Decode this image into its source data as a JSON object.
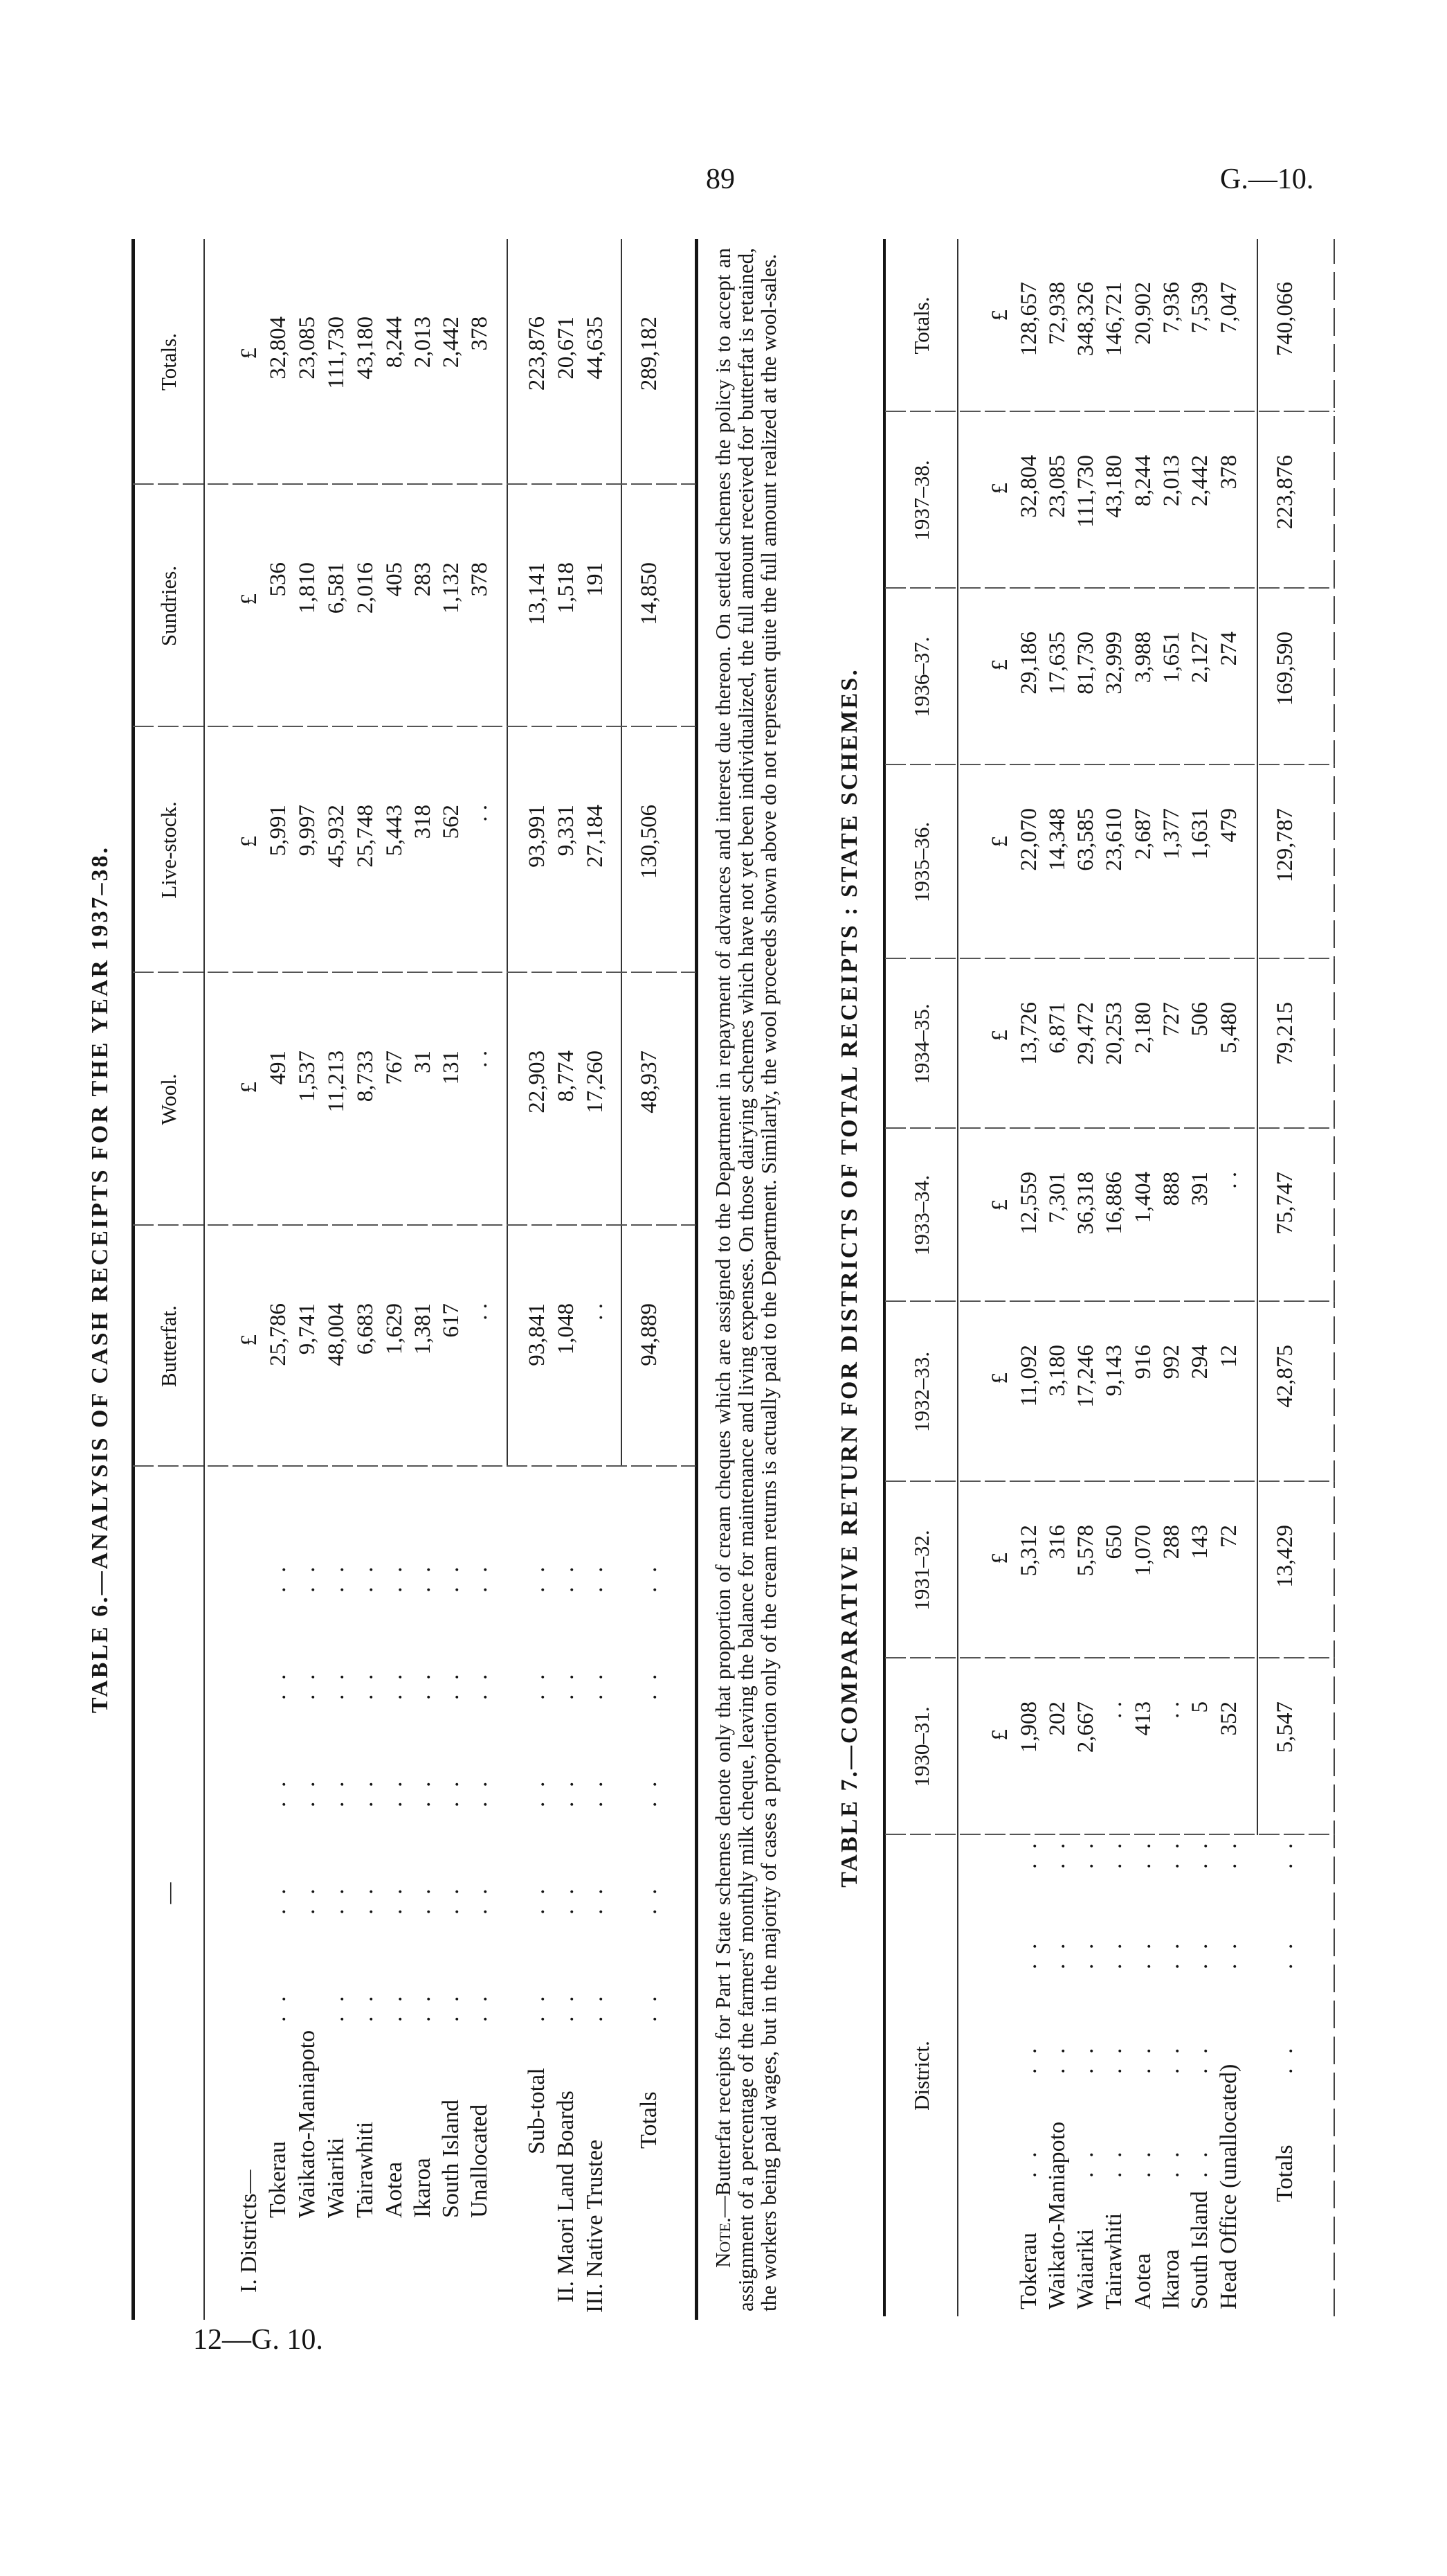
{
  "page": {
    "header_page_number": "89",
    "header_reference": "G.—10.",
    "footer_reference": "12—G. 10."
  },
  "table6": {
    "title": "TABLE 6.—ANALYSIS OF CASH RECEIPTS FOR THE YEAR 1937–38.",
    "columns": [
      "—",
      "Butterfat.",
      "Wool.",
      "Live-stock.",
      "Sundries.",
      "Totals."
    ],
    "currency": "£",
    "rows": [
      {
        "label": "I. Districts—",
        "values": []
      },
      {
        "label": "Tokerau",
        "values": [
          "25,786",
          "491",
          "5,991",
          "536",
          "32,804"
        ]
      },
      {
        "label": "Waikato-Maniapoto",
        "values": [
          "9,741",
          "1,537",
          "9,997",
          "1,810",
          "23,085"
        ]
      },
      {
        "label": "Waiariki",
        "values": [
          "48,004",
          "11,213",
          "45,932",
          "6,581",
          "111,730"
        ]
      },
      {
        "label": "Tairawhiti",
        "values": [
          "6,683",
          "8,733",
          "25,748",
          "2,016",
          "43,180"
        ]
      },
      {
        "label": "Aotea",
        "values": [
          "1,629",
          "767",
          "5,443",
          "405",
          "8,244"
        ]
      },
      {
        "label": "Ikaroa",
        "values": [
          "1,381",
          "31",
          "318",
          "283",
          "2,013"
        ]
      },
      {
        "label": "South Island",
        "values": [
          "617",
          "131",
          "562",
          "1,132",
          "2,442"
        ]
      },
      {
        "label": "Unallocated",
        "values": [
          ". .",
          ". .",
          ". .",
          "378",
          "378"
        ]
      },
      {
        "label": "Sub-total",
        "values": [
          "93,841",
          "22,903",
          "93,991",
          "13,141",
          "223,876"
        ]
      },
      {
        "label": "II. Maori Land Boards",
        "values": [
          "1,048",
          "8,774",
          "9,331",
          "1,518",
          "20,671"
        ]
      },
      {
        "label": "III. Native Trustee",
        "values": [
          ". .",
          "17,260",
          "27,184",
          "191",
          "44,635"
        ]
      },
      {
        "label": "Totals",
        "values": [
          "94,889",
          "48,937",
          "130,506",
          "14,850",
          "289,182"
        ]
      }
    ]
  },
  "note": {
    "lead": "Note.",
    "text": "—Butterfat receipts for Part I State schemes denote only that proportion of cream cheques which are assigned to the Department in repayment of advances and interest due thereon. On settled schemes the policy is to accept an assignment of a percentage of the farmers' monthly milk cheque, leaving the balance for maintenance and living expenses. On those dairying schemes which have not yet been individualized, the full amount received for butterfat is retained, the workers being paid wages, but in the majority of cases a proportion only of the cream returns is actually paid to the Department. Similarly, the wool proceeds shown above do not represent quite the full amount realized at the wool-sales."
  },
  "table7": {
    "title": "TABLE 7.—COMPARATIVE RETURN FOR DISTRICTS OF TOTAL RECEIPTS : STATE SCHEMES.",
    "columns": [
      "District.",
      "1930–31.",
      "1931–32.",
      "1932–33.",
      "1933–34.",
      "1934–35.",
      "1935–36.",
      "1936–37.",
      "1937–38.",
      "Totals."
    ],
    "currency": "£",
    "rows": [
      {
        "label": "Tokerau",
        "values": [
          "1,908",
          "5,312",
          "11,092",
          "12,559",
          "13,726",
          "22,070",
          "29,186",
          "32,804",
          "128,657"
        ]
      },
      {
        "label": "Waikato-Maniapoto",
        "values": [
          "202",
          "316",
          "3,180",
          "7,301",
          "6,871",
          "14,348",
          "17,635",
          "23,085",
          "72,938"
        ]
      },
      {
        "label": "Waiariki",
        "values": [
          "2,667",
          "5,578",
          "17,246",
          "36,318",
          "29,472",
          "63,585",
          "81,730",
          "111,730",
          "348,326"
        ]
      },
      {
        "label": "Tairawhiti",
        "values": [
          ". .",
          "650",
          "9,143",
          "16,886",
          "20,253",
          "23,610",
          "32,999",
          "43,180",
          "146,721"
        ]
      },
      {
        "label": "Aotea",
        "values": [
          "413",
          "1,070",
          "916",
          "1,404",
          "2,180",
          "2,687",
          "3,988",
          "8,244",
          "20,902"
        ]
      },
      {
        "label": "Ikaroa",
        "values": [
          ". .",
          "288",
          "992",
          "888",
          "727",
          "1,377",
          "1,651",
          "2,013",
          "7,936"
        ]
      },
      {
        "label": "South Island",
        "values": [
          "5",
          "143",
          "294",
          "391",
          "506",
          "1,631",
          "2,127",
          "2,442",
          "7,539"
        ]
      },
      {
        "label": "Head Office (unallocated)",
        "values": [
          "352",
          "72",
          "12",
          ". .",
          "5,480",
          "479",
          "274",
          "378",
          "7,047"
        ]
      },
      {
        "label": "Totals",
        "values": [
          "5,547",
          "13,429",
          "42,875",
          "75,747",
          "79,215",
          "129,787",
          "169,590",
          "223,876",
          "740,066"
        ]
      }
    ]
  },
  "leader_mark": ". ."
}
